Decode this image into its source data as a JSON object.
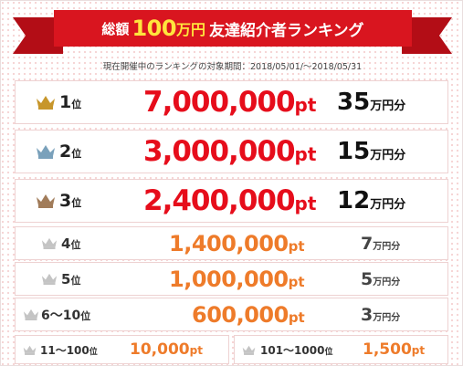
{
  "banner": {
    "prefix": "総額",
    "amount": "100",
    "unit": "万円",
    "title": "友達紹介者ランキング",
    "color": "#d9151f"
  },
  "period": "現在開催中のランキングの対象期間：2018/05/01/～2018/05/31",
  "colors": {
    "gold": "#c7962b",
    "silver": "#7aa1bb",
    "bronze": "#a17c5a",
    "gray": "#c4c4c4",
    "top_points": "#e60d1b",
    "other_points": "#ee7b2a"
  },
  "rows": [
    {
      "rank": "1",
      "rank_suffix": "位",
      "points": "7,000,000",
      "points_unit": "pt",
      "prize": "35",
      "prize_unit": "万円分",
      "crown": "gold-crown-icon"
    },
    {
      "rank": "2",
      "rank_suffix": "位",
      "points": "3,000,000",
      "points_unit": "pt",
      "prize": "15",
      "prize_unit": "万円分",
      "crown": "silver-crown-icon"
    },
    {
      "rank": "3",
      "rank_suffix": "位",
      "points": "2,400,000",
      "points_unit": "pt",
      "prize": "12",
      "prize_unit": "万円分",
      "crown": "bronze-crown-icon"
    },
    {
      "rank": "4",
      "rank_suffix": "位",
      "points": "1,400,000",
      "points_unit": "pt",
      "prize": "7",
      "prize_unit": "万円分",
      "crown": "gray-crown-icon"
    },
    {
      "rank": "5",
      "rank_suffix": "位",
      "points": "1,000,000",
      "points_unit": "pt",
      "prize": "5",
      "prize_unit": "万円分",
      "crown": "gray-crown-icon"
    },
    {
      "rank": "6～10",
      "rank_suffix": "位",
      "points": "600,000",
      "points_unit": "pt",
      "prize": "3",
      "prize_unit": "万円分",
      "crown": "gray-crown-icon"
    }
  ],
  "bottom": [
    {
      "rank": "11～100",
      "rank_suffix": "位",
      "points": "10,000",
      "points_unit": "pt",
      "crown": "gray-crown-icon"
    },
    {
      "rank": "101～1000",
      "rank_suffix": "位",
      "points": "1,500",
      "points_unit": "pt",
      "crown": "gray-crown-icon"
    }
  ]
}
